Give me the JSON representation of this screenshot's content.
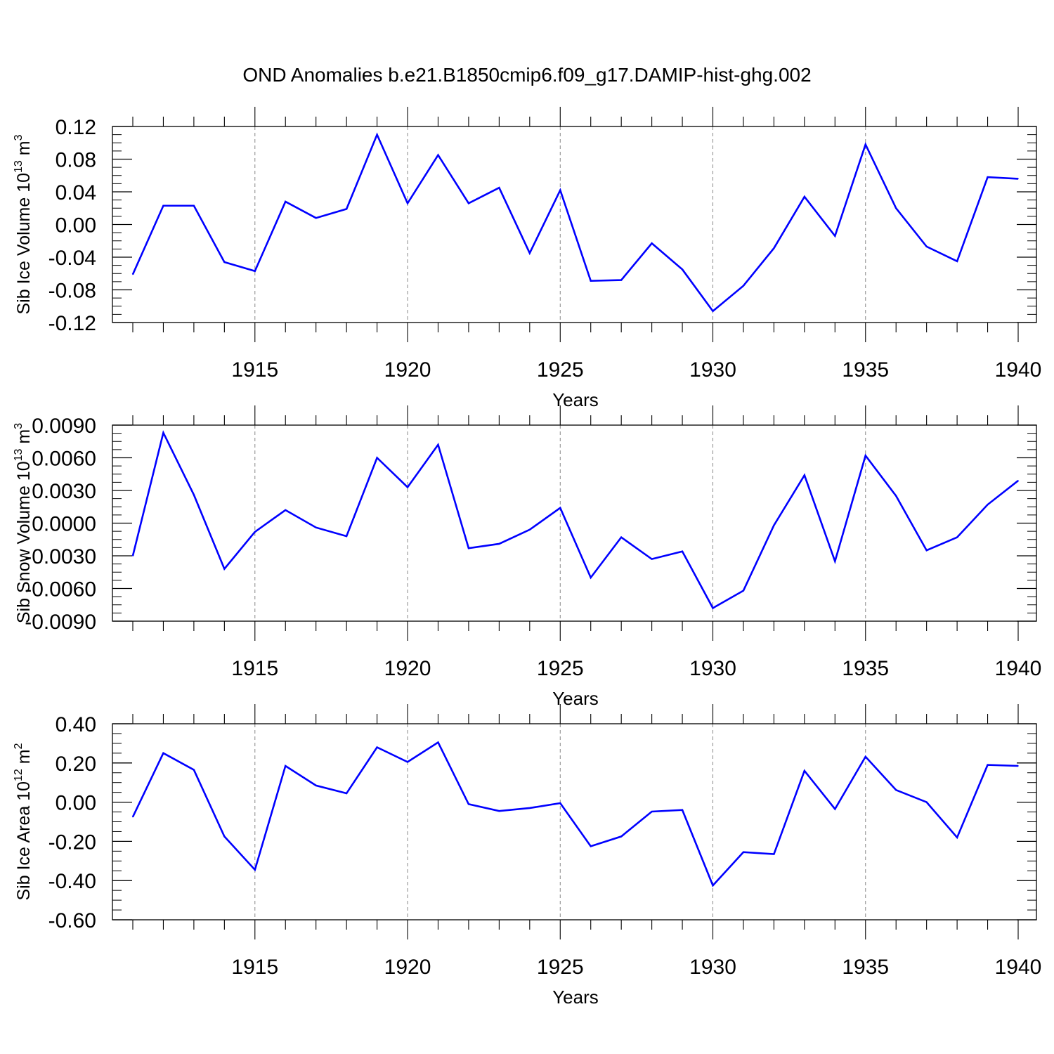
{
  "title": "OND Anomalies b.e21.B1850cmip6.f09_g17.DAMIP-hist-ghg.002",
  "line_color": "#0000ff",
  "chart_data": [
    {
      "type": "line",
      "xlabel": "Years",
      "ylabel": {
        "base": "Sib Ice Volume 10",
        "exp": "13",
        "unit": " m",
        "unit_exp": "3"
      },
      "xlim": [
        1911,
        1940
      ],
      "ylim": [
        -0.12,
        0.12
      ],
      "y_major_ticks": [
        -0.12,
        -0.08,
        -0.04,
        0.0,
        0.04,
        0.08,
        0.12
      ],
      "y_tick_labels": [
        "-0.12",
        "-0.08",
        "-0.04",
        "0.00",
        "0.04",
        "0.08",
        "0.12"
      ],
      "x_tick_labels": [
        "1915",
        "1920",
        "1925",
        "1930",
        "1935",
        "1940"
      ],
      "x_major_ticks": [
        1915,
        1920,
        1925,
        1930,
        1935,
        1940
      ],
      "x": [
        1911,
        1912,
        1913,
        1914,
        1915,
        1916,
        1917,
        1918,
        1919,
        1920,
        1921,
        1922,
        1923,
        1924,
        1925,
        1926,
        1927,
        1928,
        1929,
        1930,
        1931,
        1932,
        1933,
        1934,
        1935,
        1936,
        1937,
        1938,
        1939,
        1940
      ],
      "series": [
        {
          "values": [
            -0.061,
            0.023,
            0.023,
            -0.046,
            -0.057,
            0.028,
            0.008,
            0.019,
            0.11,
            0.026,
            0.085,
            0.026,
            0.045,
            -0.035,
            0.042,
            -0.069,
            -0.068,
            -0.023,
            -0.055,
            -0.106,
            -0.075,
            -0.029,
            0.034,
            -0.014,
            0.098,
            0.02,
            -0.027,
            -0.045,
            0.058,
            0.056
          ]
        }
      ]
    },
    {
      "type": "line",
      "xlabel": "Years",
      "ylabel": {
        "base": "Sib Snow Volume 10",
        "exp": "13",
        "unit": " m",
        "unit_exp": "3"
      },
      "xlim": [
        1911,
        1940
      ],
      "ylim": [
        -0.009,
        0.009
      ],
      "y_major_ticks": [
        -0.009,
        -0.006,
        -0.003,
        0.0,
        0.003,
        0.006,
        0.009
      ],
      "y_tick_labels": [
        "-0.0090",
        "-0.0060",
        "-0.0030",
        "0.0000",
        "0.0030",
        "0.0060",
        "0.0090"
      ],
      "x_tick_labels": [
        "1915",
        "1920",
        "1925",
        "1930",
        "1935",
        "1940"
      ],
      "x_major_ticks": [
        1915,
        1920,
        1925,
        1930,
        1935,
        1940
      ],
      "x": [
        1911,
        1912,
        1913,
        1914,
        1915,
        1916,
        1917,
        1918,
        1919,
        1920,
        1921,
        1922,
        1923,
        1924,
        1925,
        1926,
        1927,
        1928,
        1929,
        1930,
        1931,
        1932,
        1933,
        1934,
        1935,
        1936,
        1937,
        1938,
        1939,
        1940
      ],
      "series": [
        {
          "values": [
            -0.003,
            0.0083,
            0.0026,
            -0.0042,
            -0.0008,
            0.0012,
            -0.0004,
            -0.0012,
            0.006,
            0.0033,
            0.0072,
            -0.0023,
            -0.0019,
            -0.0006,
            0.0014,
            -0.005,
            -0.0013,
            -0.0033,
            -0.0026,
            -0.0078,
            -0.0062,
            -0.0002,
            0.0044,
            -0.0035,
            0.0062,
            0.0025,
            -0.0025,
            -0.0013,
            0.0017,
            0.0039
          ]
        }
      ]
    },
    {
      "type": "line",
      "xlabel": "Years",
      "ylabel": {
        "base": "Sib Ice Area 10",
        "exp": "12",
        "unit": " m",
        "unit_exp": "2"
      },
      "xlim": [
        1911,
        1940
      ],
      "ylim": [
        -0.6,
        0.4
      ],
      "y_major_ticks": [
        -0.6,
        -0.4,
        -0.2,
        0.0,
        0.2,
        0.4
      ],
      "y_tick_labels": [
        "-0.60",
        "-0.40",
        "-0.20",
        "0.00",
        "0.20",
        "0.40"
      ],
      "x_tick_labels": [
        "1915",
        "1920",
        "1925",
        "1930",
        "1935",
        "1940"
      ],
      "x_major_ticks": [
        1915,
        1920,
        1925,
        1930,
        1935,
        1940
      ],
      "x": [
        1911,
        1912,
        1913,
        1914,
        1915,
        1916,
        1917,
        1918,
        1919,
        1920,
        1921,
        1922,
        1923,
        1924,
        1925,
        1926,
        1927,
        1928,
        1929,
        1930,
        1931,
        1932,
        1933,
        1934,
        1935,
        1936,
        1937,
        1938,
        1939,
        1940
      ],
      "series": [
        {
          "values": [
            -0.075,
            0.25,
            0.165,
            -0.175,
            -0.345,
            0.185,
            0.085,
            0.045,
            0.28,
            0.205,
            0.305,
            -0.01,
            -0.045,
            -0.03,
            -0.005,
            -0.225,
            -0.175,
            -0.048,
            -0.04,
            -0.425,
            -0.255,
            -0.265,
            0.16,
            -0.035,
            0.232,
            0.062,
            0.0,
            -0.18,
            0.19,
            0.185
          ]
        }
      ]
    }
  ]
}
